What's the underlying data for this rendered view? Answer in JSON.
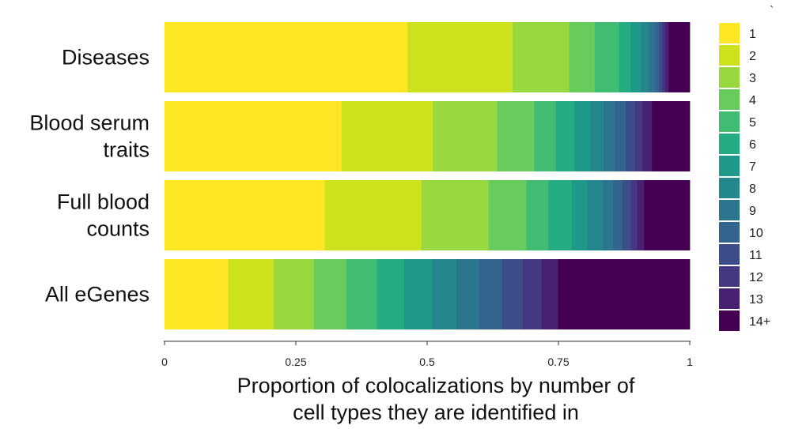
{
  "chart_data": {
    "type": "bar",
    "orientation": "horizontal",
    "stacked": true,
    "categories": [
      "Diseases",
      "Blood serum traits",
      "Full blood counts",
      "All eGenes"
    ],
    "category_labels": [
      [
        "Diseases"
      ],
      [
        "Blood serum",
        "traits"
      ],
      [
        "Full blood",
        "counts"
      ],
      [
        "All eGenes"
      ]
    ],
    "xlabel_lines": [
      "Proportion of colocalizations by number of",
      "cell types they are identified in"
    ],
    "xlim": [
      0,
      1
    ],
    "x_ticks": [
      {
        "value": 0,
        "label": "0"
      },
      {
        "value": 0.25,
        "label": "0.25"
      },
      {
        "value": 0.5,
        "label": "0.5"
      },
      {
        "value": 0.75,
        "label": "0.75"
      },
      {
        "value": 1,
        "label": "1"
      }
    ],
    "grid": false,
    "legend_position": "right",
    "series": [
      {
        "name": "1",
        "color": "#fde725",
        "values": [
          0.46,
          0.337,
          0.305,
          0.121
        ]
      },
      {
        "name": "2",
        "color": "#cde11d",
        "values": [
          0.199,
          0.174,
          0.184,
          0.087
        ]
      },
      {
        "name": "3",
        "color": "#98d83e",
        "values": [
          0.107,
          0.122,
          0.128,
          0.076
        ]
      },
      {
        "name": "4",
        "color": "#67cc5c",
        "values": [
          0.048,
          0.071,
          0.072,
          0.062
        ]
      },
      {
        "name": "5",
        "color": "#40bd72",
        "values": [
          0.046,
          0.041,
          0.042,
          0.058
        ]
      },
      {
        "name": "6",
        "color": "#25ac82",
        "values": [
          0.022,
          0.035,
          0.044,
          0.052
        ]
      },
      {
        "name": "7",
        "color": "#1f998a",
        "values": [
          0.02,
          0.031,
          0.03,
          0.054
        ]
      },
      {
        "name": "8",
        "color": "#24878e",
        "values": [
          0.014,
          0.025,
          0.029,
          0.046
        ]
      },
      {
        "name": "9",
        "color": "#2b758e",
        "values": [
          0.012,
          0.022,
          0.02,
          0.043
        ]
      },
      {
        "name": "10",
        "color": "#32648e",
        "values": [
          0.008,
          0.02,
          0.018,
          0.044
        ]
      },
      {
        "name": "11",
        "color": "#3d4d8a",
        "values": [
          0.006,
          0.018,
          0.016,
          0.039
        ]
      },
      {
        "name": "12",
        "color": "#453781",
        "values": [
          0.005,
          0.014,
          0.012,
          0.036
        ]
      },
      {
        "name": "13",
        "color": "#482173",
        "values": [
          0.007,
          0.018,
          0.013,
          0.031
        ]
      },
      {
        "name": "14+",
        "color": "#440154",
        "values": [
          0.04,
          0.072,
          0.087,
          0.251
        ]
      }
    ]
  }
}
